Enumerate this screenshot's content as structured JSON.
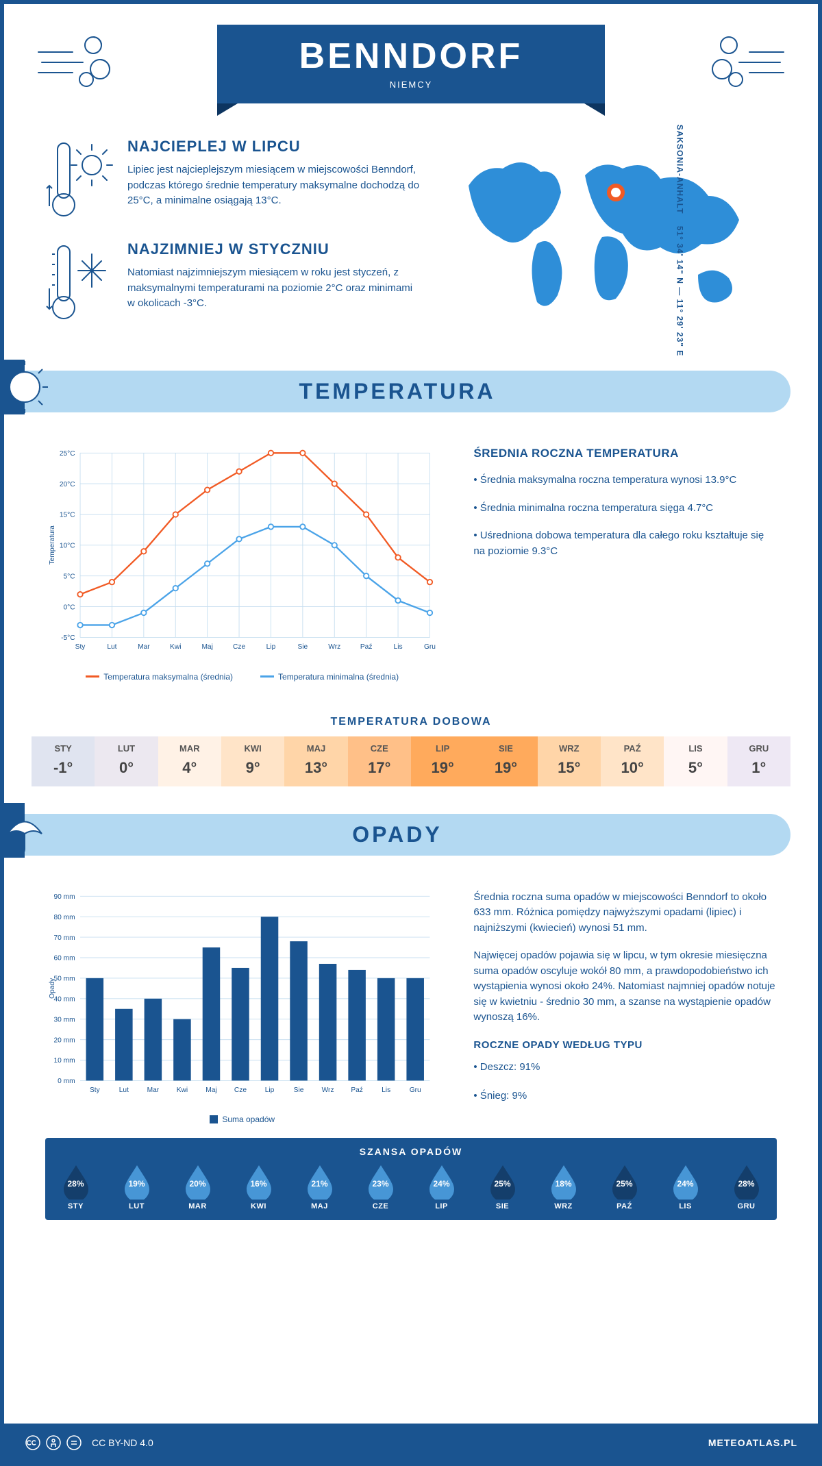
{
  "header": {
    "city": "BENNDORF",
    "country": "NIEMCY"
  },
  "coords": {
    "text": "51° 34' 14\" N — 11° 29' 23\" E",
    "region": "SAKSONIA-ANHALT"
  },
  "intro": {
    "warm": {
      "title": "NAJCIEPLEJ W LIPCU",
      "text": "Lipiec jest najcieplejszym miesiącem w miejscowości Benndorf, podczas którego średnie temperatury maksymalne dochodzą do 25°C, a minimalne osiągają 13°C."
    },
    "cold": {
      "title": "NAJZIMNIEJ W STYCZNIU",
      "text": "Natomiast najzimniejszym miesiącem w roku jest styczeń, z maksymalnymi temperaturami na poziomie 2°C oraz minimami w okolicach -3°C."
    }
  },
  "temperature": {
    "section_title": "TEMPERATURA",
    "months": [
      "Sty",
      "Lut",
      "Mar",
      "Kwi",
      "Maj",
      "Cze",
      "Lip",
      "Sie",
      "Wrz",
      "Paź",
      "Lis",
      "Gru"
    ],
    "max_series": [
      2,
      4,
      9,
      15,
      19,
      22,
      25,
      25,
      20,
      15,
      8,
      4
    ],
    "min_series": [
      -3,
      -3,
      -1,
      3,
      7,
      11,
      13,
      13,
      10,
      5,
      1,
      -1
    ],
    "max_color": "#f15a24",
    "min_color": "#4aa3e8",
    "grid_color": "#c8dff0",
    "ylim": [
      -5,
      25
    ],
    "ytick_step": 5,
    "ylabel": "Temperatura",
    "legend_max": "Temperatura maksymalna (średnia)",
    "legend_min": "Temperatura minimalna (średnia)",
    "side_title": "ŚREDNIA ROCZNA TEMPERATURA",
    "side_points": [
      "• Średnia maksymalna roczna temperatura wynosi 13.9°C",
      "• Średnia minimalna roczna temperatura sięga 4.7°C",
      "• Uśredniona dobowa temperatura dla całego roku kształtuje się na poziomie 9.3°C"
    ],
    "daily": {
      "title": "TEMPERATURA DOBOWA",
      "months": [
        "STY",
        "LUT",
        "MAR",
        "KWI",
        "MAJ",
        "CZE",
        "LIP",
        "SIE",
        "WRZ",
        "PAŹ",
        "LIS",
        "GRU"
      ],
      "values": [
        "-1°",
        "0°",
        "4°",
        "9°",
        "13°",
        "17°",
        "19°",
        "19°",
        "15°",
        "10°",
        "5°",
        "1°"
      ],
      "colors": [
        "#e0e4f0",
        "#ece8f0",
        "#fff2e6",
        "#ffe4c8",
        "#ffd5a8",
        "#ffc088",
        "#ffaa5c",
        "#ffaa5c",
        "#ffd5a8",
        "#ffe4c8",
        "#fff6f4",
        "#eee8f4"
      ]
    }
  },
  "precip": {
    "section_title": "OPADY",
    "months": [
      "Sty",
      "Lut",
      "Mar",
      "Kwi",
      "Maj",
      "Cze",
      "Lip",
      "Sie",
      "Wrz",
      "Paź",
      "Lis",
      "Gru"
    ],
    "values": [
      50,
      35,
      40,
      30,
      65,
      55,
      80,
      68,
      57,
      54,
      50,
      50
    ],
    "bar_color": "#1a5490",
    "grid_color": "#c8dff0",
    "ylim": [
      0,
      90
    ],
    "ytick_step": 10,
    "ylabel": "Opady",
    "legend": "Suma opadów",
    "para1": "Średnia roczna suma opadów w miejscowości Benndorf to około 633 mm. Różnica pomiędzy najwyższymi opadami (lipiec) i najniższymi (kwiecień) wynosi 51 mm.",
    "para2": "Najwięcej opadów pojawia się w lipcu, w tym okresie miesięczna suma opadów oscyluje wokół 80 mm, a prawdopodobieństwo ich wystąpienia wynosi około 24%. Natomiast najmniej opadów notuje się w kwietniu - średnio 30 mm, a szanse na wystąpienie opadów wynoszą 16%.",
    "chance": {
      "title": "SZANSA OPADÓW",
      "months": [
        "STY",
        "LUT",
        "MAR",
        "KWI",
        "MAJ",
        "CZE",
        "LIP",
        "SIE",
        "WRZ",
        "PAŹ",
        "LIS",
        "GRU"
      ],
      "pct": [
        "28%",
        "19%",
        "20%",
        "16%",
        "21%",
        "23%",
        "24%",
        "25%",
        "18%",
        "25%",
        "24%",
        "28%"
      ],
      "drop_dark": "#143e6b",
      "drop_light": "#4796d6",
      "dark_indices": [
        0,
        7,
        9,
        11
      ]
    },
    "type": {
      "title": "ROCZNE OPADY WEDŁUG TYPU",
      "rain": "• Deszcz: 91%",
      "snow": "• Śnieg: 9%"
    }
  },
  "footer": {
    "license": "CC BY-ND 4.0",
    "site": "METEOATLAS.PL"
  }
}
